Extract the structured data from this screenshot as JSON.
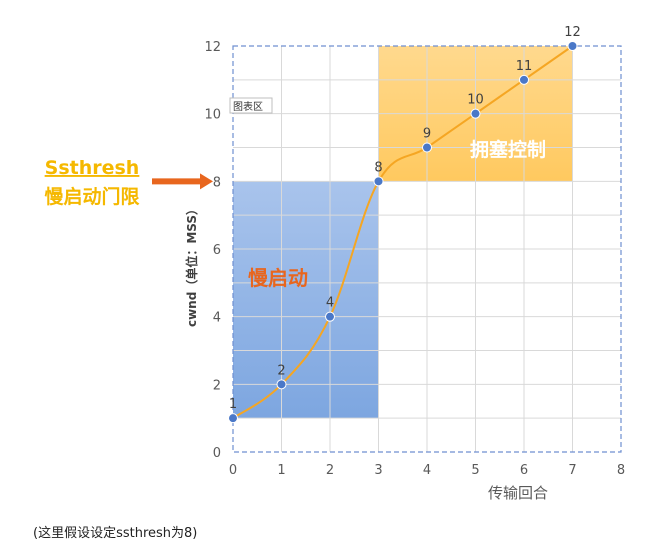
{
  "chart_data": {
    "type": "line",
    "x": [
      0,
      1,
      2,
      3,
      4,
      5,
      6,
      7
    ],
    "series": [
      {
        "values": [
          1,
          2,
          4,
          8,
          9,
          10,
          11,
          12
        ]
      }
    ],
    "data_labels": [
      "1",
      "2",
      "4",
      "8",
      "9",
      "10",
      "11",
      "12"
    ],
    "xlim": [
      0,
      8
    ],
    "ylim": [
      0,
      12
    ],
    "x_ticks": [
      "0",
      "1",
      "2",
      "3",
      "4",
      "5",
      "6",
      "7",
      "8"
    ],
    "y_ticks": [
      "0",
      "2",
      "4",
      "6",
      "8",
      "10",
      "12"
    ],
    "xlabel": "传输回合",
    "ylabel": "cwnd（单位：MSS）",
    "grid": true,
    "plot_area_tag": "图表区",
    "regions": [
      {
        "label": "慢启动",
        "x_range": [
          0,
          3
        ],
        "y_range": [
          1,
          8
        ],
        "color": "#8fb3e6"
      },
      {
        "label": "拥塞控制",
        "x_range": [
          3,
          7
        ],
        "y_range": [
          8,
          12
        ],
        "color": "#ffd27f"
      }
    ],
    "threshold": {
      "y": 8,
      "label_line1": "Ssthresh",
      "label_line2": "慢启动门限"
    },
    "colors": {
      "line": "#f5a623",
      "marker": "#4a78c8",
      "arrow": "#e8661e",
      "slow_start_text": "#e8661e",
      "congestion_text": "#ffffff"
    }
  },
  "footnote": "(这里假设设定ssthresh为8)"
}
